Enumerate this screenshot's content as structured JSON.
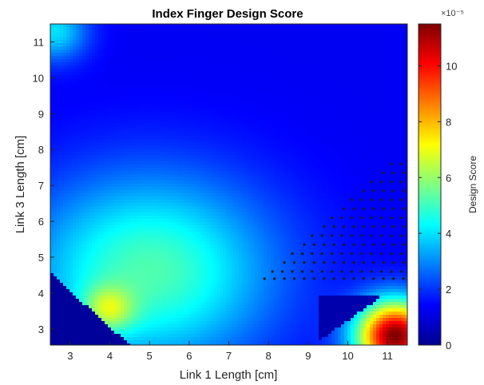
{
  "chart_data": {
    "type": "heatmap",
    "title": "Index Finger Design Score",
    "xlabel": "Link 1 Length [cm]",
    "ylabel": "Link 3 Length [cm]",
    "xlim": [
      2.5,
      11.5
    ],
    "ylim": [
      2.55,
      11.5
    ],
    "xticks": [
      3,
      4,
      5,
      6,
      7,
      8,
      9,
      10,
      11
    ],
    "yticks": [
      3,
      4,
      5,
      6,
      7,
      8,
      9,
      10,
      11
    ],
    "colormap": "jet",
    "colorbar": {
      "label": "Design Score",
      "exponent": "×10⁻⁵",
      "min": 0,
      "max": 11.5,
      "ticks": [
        0,
        2,
        4,
        6,
        8,
        10
      ]
    },
    "field_peaks": [
      {
        "x": 11.2,
        "y": 2.8,
        "value": 11.5,
        "spread": 0.7
      },
      {
        "x": 4.0,
        "y": 3.6,
        "value": 7.0,
        "spread": 0.45
      },
      {
        "x": 2.6,
        "y": 11.3,
        "value": 4.0,
        "spread": 0.6
      }
    ],
    "field_base": {
      "low": 1.3,
      "center": [
        5.0,
        4.6
      ],
      "center_value": 5.2,
      "spread": 1.9
    },
    "invalid_region": "x + y < 8.0 and x > 10.2 - y... (infeasible corners shown in dark blue)",
    "points": {
      "marker": "dot",
      "color": "#1a1a1a",
      "rows": [
        {
          "y": 4.4,
          "x_start": 7.9,
          "x_end": 11.4
        },
        {
          "y": 4.6,
          "x_start": 8.1,
          "x_end": 11.4
        },
        {
          "y": 4.85,
          "x_start": 8.4,
          "x_end": 11.4
        },
        {
          "y": 5.1,
          "x_start": 8.6,
          "x_end": 11.4
        },
        {
          "y": 5.35,
          "x_start": 8.9,
          "x_end": 11.4
        },
        {
          "y": 5.6,
          "x_start": 9.1,
          "x_end": 11.4
        },
        {
          "y": 5.85,
          "x_start": 9.4,
          "x_end": 11.4
        },
        {
          "y": 6.1,
          "x_start": 9.6,
          "x_end": 11.4
        },
        {
          "y": 6.35,
          "x_start": 9.9,
          "x_end": 11.4
        },
        {
          "y": 6.6,
          "x_start": 10.1,
          "x_end": 11.4
        },
        {
          "y": 6.85,
          "x_start": 10.4,
          "x_end": 11.4
        },
        {
          "y": 7.1,
          "x_start": 10.6,
          "x_end": 11.4
        },
        {
          "y": 7.35,
          "x_start": 10.9,
          "x_end": 11.4
        },
        {
          "y": 7.6,
          "x_start": 11.1,
          "x_end": 11.4
        }
      ],
      "x_step": 0.25
    }
  }
}
